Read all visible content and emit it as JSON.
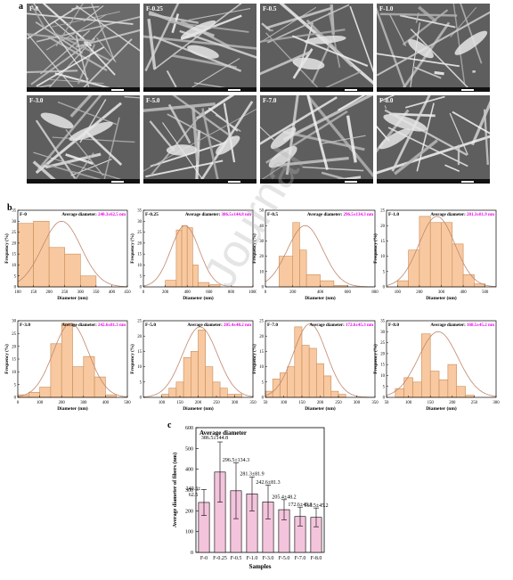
{
  "panel_labels": {
    "a": "a",
    "b": "b",
    "c": "c"
  },
  "sem_panels": [
    {
      "label": "F-0"
    },
    {
      "label": "F-0.25"
    },
    {
      "label": "F-0.5"
    },
    {
      "label": "F-1.0"
    },
    {
      "label": "F-3.0"
    },
    {
      "label": "F-5.0"
    },
    {
      "label": "F-7.0"
    },
    {
      "label": "F-8.0"
    }
  ],
  "watermark": "Journal",
  "colors": {
    "hist_fill": "#f8c9a0",
    "hist_stroke": "#c98a56",
    "fit_curve": "#c0876c",
    "avg_text": "#e600e6",
    "bar_fill": "#f3c4dc",
    "bar_stroke": "#000000"
  },
  "hist_common": {
    "xlabel": "Diameter (nm)",
    "ylabel": "Frequency (%)",
    "avg_prefix": "Average diameter: "
  },
  "chart_data": [
    {
      "type": "bar",
      "sample": "F-0",
      "avg": "240.3±62.5 nm",
      "bin_edges": [
        100,
        150,
        200,
        250,
        300,
        350,
        400
      ],
      "values": [
        29,
        30,
        18,
        15,
        5,
        0
      ],
      "xlim": [
        100,
        450
      ],
      "ylim": [
        0,
        35
      ],
      "xticks": [
        100,
        150,
        200,
        250,
        300,
        350,
        400,
        450
      ],
      "yticks": [
        0,
        5,
        10,
        15,
        20,
        25,
        30,
        35
      ],
      "fit": {
        "mean": 240,
        "sd": 62,
        "peak": 30
      }
    },
    {
      "type": "bar",
      "sample": "F-0.25",
      "avg": "386.5±144.8 nm",
      "bin_edges": [
        200,
        300,
        350,
        400,
        450,
        500,
        600,
        700,
        800,
        900
      ],
      "values": [
        3,
        26,
        28,
        27,
        10,
        2,
        1,
        0,
        0
      ],
      "xlim": [
        0,
        1000
      ],
      "ylim": [
        0,
        35
      ],
      "xticks": [
        0,
        200,
        400,
        600,
        800,
        1000
      ],
      "yticks": [
        0,
        5,
        10,
        15,
        20,
        25,
        30,
        35
      ],
      "fit": {
        "mean": 380,
        "sd": 130,
        "peak": 28
      }
    },
    {
      "type": "bar",
      "sample": "F-0.5",
      "avg": "296.5±134.3 nm",
      "bin_edges": [
        100,
        200,
        250,
        300,
        400,
        500,
        600,
        700
      ],
      "values": [
        20,
        42,
        24,
        8,
        4,
        1,
        0
      ],
      "xlim": [
        0,
        800
      ],
      "ylim": [
        0,
        50
      ],
      "xticks": [
        0,
        200,
        400,
        600,
        800
      ],
      "yticks": [
        0,
        10,
        20,
        30,
        40,
        50
      ],
      "fit": {
        "mean": 290,
        "sd": 130,
        "peak": 40
      }
    },
    {
      "type": "bar",
      "sample": "F-1.0",
      "avg": "281.3±81.9 nm",
      "bin_edges": [
        100,
        150,
        200,
        250,
        300,
        350,
        400,
        450,
        500
      ],
      "values": [
        2,
        12,
        23,
        21,
        21,
        14,
        4,
        1
      ],
      "xlim": [
        50,
        550
      ],
      "ylim": [
        0,
        25
      ],
      "xticks": [
        100,
        200,
        300,
        400,
        500
      ],
      "yticks": [
        0,
        5,
        10,
        15,
        20,
        25
      ],
      "fit": {
        "mean": 280,
        "sd": 82,
        "peak": 23
      }
    },
    {
      "type": "bar",
      "sample": "F-3.0",
      "avg": "242.6±81.3 nm",
      "bin_edges": [
        0,
        50,
        100,
        150,
        200,
        250,
        300,
        350,
        400,
        450
      ],
      "values": [
        1,
        2,
        4,
        21,
        29,
        12,
        16,
        8,
        1
      ],
      "xlim": [
        0,
        500
      ],
      "ylim": [
        0,
        30
      ],
      "xticks": [
        0,
        100,
        200,
        300,
        400,
        500
      ],
      "yticks": [
        0,
        5,
        10,
        15,
        20,
        25,
        30
      ],
      "fit": {
        "mean": 242,
        "sd": 81,
        "peak": 29
      }
    },
    {
      "type": "bar",
      "sample": "F-5.0",
      "avg": "205.4±48.2 nm",
      "bin_edges": [
        100,
        120,
        140,
        160,
        180,
        200,
        220,
        240,
        260,
        280,
        300,
        320
      ],
      "values": [
        1,
        3,
        5,
        13,
        15,
        22,
        10,
        5,
        3,
        1,
        1
      ],
      "xlim": [
        50,
        350
      ],
      "ylim": [
        0,
        25
      ],
      "xticks": [
        100,
        150,
        200,
        250,
        300,
        350
      ],
      "yticks": [
        0,
        5,
        10,
        15,
        20,
        25
      ],
      "fit": {
        "mean": 205,
        "sd": 48,
        "peak": 23
      }
    },
    {
      "type": "bar",
      "sample": "F-7.0",
      "avg": "172.6±45.3 nm",
      "bin_edges": [
        50,
        70,
        90,
        110,
        130,
        150,
        170,
        190,
        210,
        230,
        250,
        270
      ],
      "values": [
        2,
        6,
        8,
        10,
        23,
        17,
        16,
        11,
        7,
        2,
        1
      ],
      "xlim": [
        50,
        350
      ],
      "ylim": [
        0,
        25
      ],
      "xticks": [
        50,
        100,
        150,
        200,
        250,
        300,
        350
      ],
      "yticks": [
        0,
        5,
        10,
        15,
        20,
        25
      ],
      "fit": {
        "mean": 172,
        "sd": 45,
        "peak": 24
      }
    },
    {
      "type": "bar",
      "sample": "F-8.0",
      "avg": "168.5±45.2 nm",
      "bin_edges": [
        70,
        90,
        110,
        130,
        150,
        170,
        190,
        210,
        230,
        250
      ],
      "values": [
        4,
        9,
        7,
        29,
        12,
        8,
        15,
        5,
        1
      ],
      "xlim": [
        50,
        300
      ],
      "ylim": [
        0,
        35
      ],
      "xticks": [
        50,
        100,
        150,
        200,
        250,
        300
      ],
      "yticks": [
        0,
        5,
        10,
        15,
        20,
        25,
        30,
        35
      ],
      "fit": {
        "mean": 168,
        "sd": 45,
        "peak": 30
      }
    },
    {
      "type": "bar",
      "title": "Average diameter",
      "xlabel": "Samples",
      "ylabel": "Average diameter of fibers (nm)",
      "categories": [
        "F-0",
        "F-0.25",
        "F-0.5",
        "F-1.0",
        "F-3.0",
        "F-5.0",
        "F-7.0",
        "F-8.0"
      ],
      "values": [
        240.3,
        386.5,
        296.5,
        281.3,
        242.6,
        205.4,
        172.6,
        168.5
      ],
      "errors": [
        62.5,
        144.8,
        134.3,
        81.9,
        81.3,
        48.2,
        45.3,
        45.2
      ],
      "labels": [
        "240.3±\n62.5",
        "386.5±144.8",
        "296.5±134.3",
        "281.3±81.9",
        "242.6±81.3",
        "205.4±48.2",
        "172.6±45.3",
        "168.5±45.2"
      ],
      "ylim": [
        0,
        600
      ],
      "yticks": [
        0,
        100,
        200,
        300,
        400,
        500,
        600
      ]
    }
  ]
}
